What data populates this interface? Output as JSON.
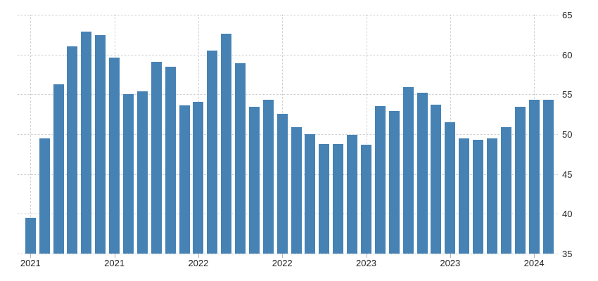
{
  "chart_data": {
    "type": "bar",
    "title": "",
    "xlabel": "",
    "ylabel": "",
    "categories": [
      "Jan 2021",
      "Feb 2021",
      "Mar 2021",
      "Apr 2021",
      "May 2021",
      "Jun 2021",
      "Jul 2021",
      "Aug 2021",
      "Sep 2021",
      "Oct 2021",
      "Nov 2021",
      "Dec 2021",
      "Jan 2022",
      "Feb 2022",
      "Mar 2022",
      "Apr 2022",
      "May 2022",
      "Jun 2022",
      "Jul 2022",
      "Aug 2022",
      "Sep 2022",
      "Oct 2022",
      "Nov 2022",
      "Dec 2022",
      "Jan 2023",
      "Feb 2023",
      "Mar 2023",
      "Apr 2023",
      "May 2023",
      "Jun 2023",
      "Jul 2023",
      "Aug 2023",
      "Sep 2023",
      "Oct 2023",
      "Nov 2023",
      "Dec 2023",
      "Jan 2024",
      "Feb 2024"
    ],
    "values": [
      39.5,
      49.5,
      56.3,
      61.0,
      62.9,
      62.4,
      59.6,
      55.0,
      55.4,
      59.1,
      58.5,
      53.6,
      54.1,
      60.5,
      62.6,
      58.9,
      53.4,
      54.3,
      52.6,
      50.9,
      50.0,
      48.8,
      48.8,
      49.9,
      48.7,
      53.5,
      52.9,
      55.9,
      55.2,
      53.7,
      51.5,
      49.5,
      49.3,
      49.5,
      50.9,
      53.4,
      54.3,
      54.3
    ],
    "x_tick_labels": [
      "2021",
      "2021",
      "2022",
      "2022",
      "2023",
      "2023",
      "2024"
    ],
    "x_tick_indices": [
      0,
      6,
      12,
      18,
      24,
      30,
      36
    ],
    "y_ticks": [
      65,
      60,
      55,
      50,
      45,
      40,
      35
    ],
    "ylim": [
      35,
      65
    ],
    "y_axis_side": "right",
    "grid": "dotted",
    "legend": "none",
    "colors": {
      "bar": "#4682b4",
      "grid": "#c9c9c9",
      "tick": "#b3b3b3",
      "text": "#1f1f1f",
      "background": "#ffffff"
    }
  }
}
